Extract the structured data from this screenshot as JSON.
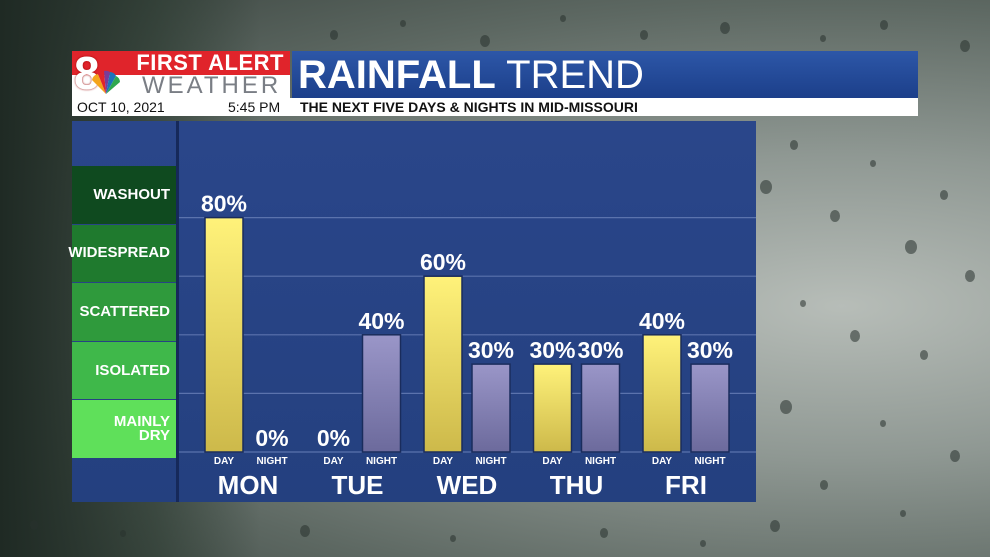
{
  "header": {
    "logo_first": "FIRST ALERT",
    "logo_weather": "WEATHER",
    "logo_number": "8",
    "title_bold": "RAINFALL",
    "title_light": "TREND",
    "date": "OCT 10, 2021",
    "time": "5:45 PM",
    "caption": "THE NEXT FIVE DAYS & NIGHTS IN MID-MISSOURI"
  },
  "categories": [
    {
      "label": "WASHOUT",
      "color": "#0f4a1f"
    },
    {
      "label": "WIDESPREAD",
      "color": "#1f7a2e"
    },
    {
      "label": "SCATTERED",
      "color": "#2f9a3c"
    },
    {
      "label": "ISOLATED",
      "color": "#3fb84a"
    },
    {
      "label": "MAINLY DRY",
      "color": "#5fe05a"
    }
  ],
  "colors": {
    "day_bar": "#f5e56a",
    "night_bar": "#8a86b8"
  },
  "chart_data": {
    "type": "bar",
    "title": "RAINFALL TREND",
    "categories": [
      "MON",
      "TUE",
      "WED",
      "THU",
      "FRI"
    ],
    "sub_labels": [
      "DAY",
      "NIGHT"
    ],
    "series": [
      {
        "name": "DAY",
        "values": [
          80,
          0,
          60,
          30,
          40
        ],
        "labels": [
          "80%",
          "0%",
          "60%",
          "30%",
          "40%"
        ]
      },
      {
        "name": "NIGHT",
        "values": [
          0,
          40,
          30,
          30,
          30
        ],
        "labels": [
          "0%",
          "40%",
          "30%",
          "30%",
          "30%"
        ]
      }
    ],
    "ylim": [
      0,
      100
    ],
    "grid": true,
    "legend": "left"
  }
}
